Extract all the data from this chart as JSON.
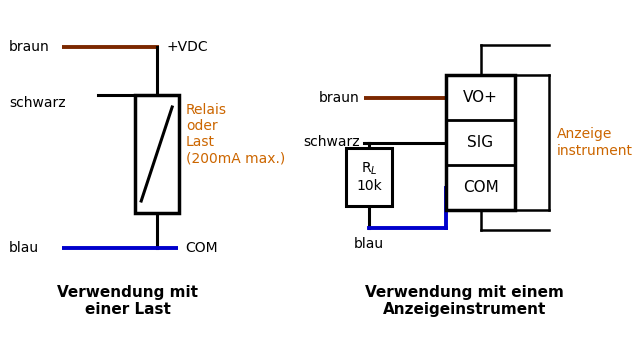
{
  "bg_color": "#ffffff",
  "brown": "#7B2800",
  "blue": "#0000CC",
  "black": "#000000",
  "orange_text": "#CC6600",
  "fig_width": 6.36,
  "fig_height": 3.52,
  "title1": "Verwendung mit\neiner Last",
  "title2": "Verwendung mit einem\nAnzeigeinstrument",
  "label_braun": "braun",
  "label_schwarz": "schwarz",
  "label_blau": "blau",
  "label_vdc": "+VDC",
  "label_com": "COM",
  "label_relais": "Relais\noder\nLast\n(200mA max.)",
  "label_vo": "VO+",
  "label_sig": "SIG",
  "label_com2": "COM",
  "label_anzeige": "Anzeige\ninstrument"
}
